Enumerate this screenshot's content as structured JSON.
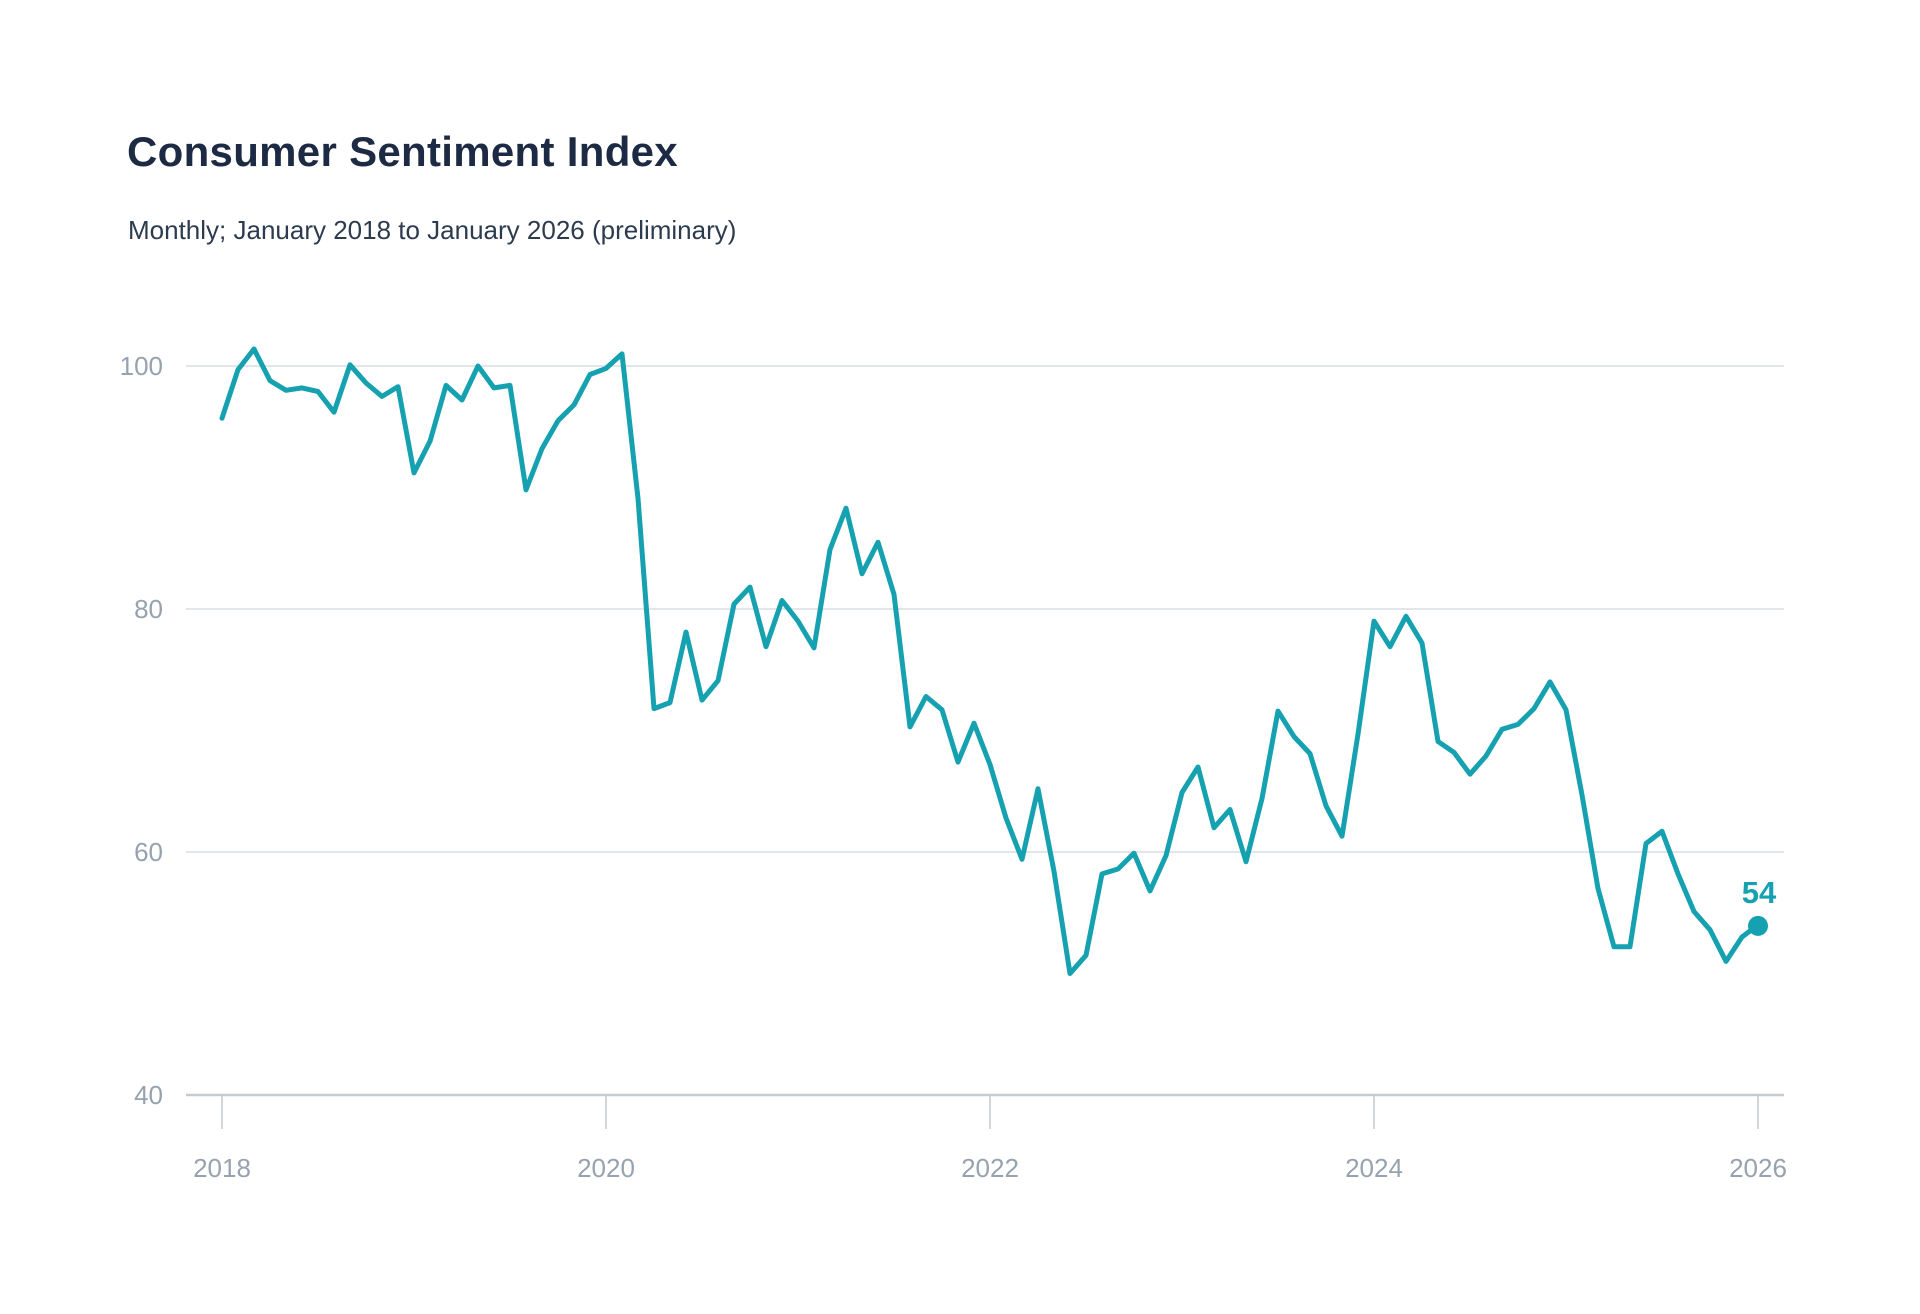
{
  "header": {
    "title": "Consumer Sentiment Index",
    "subtitle": "Monthly; January 2018 to January 2026 (preliminary)"
  },
  "chart_data": {
    "type": "line",
    "title": "Consumer Sentiment Index",
    "subtitle": "Monthly; January 2018 to January 2026 (preliminary)",
    "frequency": "monthly",
    "x_start": "2018-01",
    "x_end": "2026-01",
    "x_tick_years": [
      2018,
      2020,
      2022,
      2024,
      2026
    ],
    "x_tick_labels": [
      "2018",
      "2020",
      "2022",
      "2024",
      "2026"
    ],
    "y_ticks": [
      40,
      60,
      80,
      100
    ],
    "y_tick_labels": [
      "40",
      "60",
      "80",
      "100"
    ],
    "ylim": [
      40,
      102
    ],
    "grid": "horizontal",
    "legend": "none",
    "line_color": "#16a1b0",
    "latest_value": 54,
    "latest_label": "54",
    "series": [
      {
        "name": "Consumer Sentiment Index",
        "values": [
          95.7,
          99.7,
          101.4,
          98.8,
          98.0,
          98.2,
          97.9,
          96.2,
          100.1,
          98.6,
          97.5,
          98.3,
          91.2,
          93.8,
          98.4,
          97.2,
          100.0,
          98.2,
          98.4,
          89.8,
          93.2,
          95.5,
          96.8,
          99.3,
          99.8,
          101.0,
          89.1,
          71.8,
          72.3,
          78.1,
          72.5,
          74.1,
          80.4,
          81.8,
          76.9,
          80.7,
          79.0,
          76.8,
          84.9,
          88.3,
          82.9,
          85.5,
          81.2,
          70.3,
          72.8,
          71.7,
          67.4,
          70.6,
          67.2,
          62.8,
          59.4,
          65.2,
          58.4,
          50.0,
          51.5,
          58.2,
          58.6,
          59.9,
          56.8,
          59.7,
          64.9,
          67.0,
          62.0,
          63.5,
          59.2,
          64.4,
          71.6,
          69.5,
          68.1,
          63.8,
          61.3,
          69.7,
          79.0,
          76.9,
          79.4,
          77.2,
          69.1,
          68.2,
          66.4,
          67.9,
          70.1,
          70.5,
          71.8,
          74.0,
          71.7,
          64.7,
          57.0,
          52.2,
          52.2,
          60.7,
          61.7,
          58.2,
          55.1,
          53.6,
          51.0,
          53.0,
          54.0
        ]
      }
    ]
  }
}
